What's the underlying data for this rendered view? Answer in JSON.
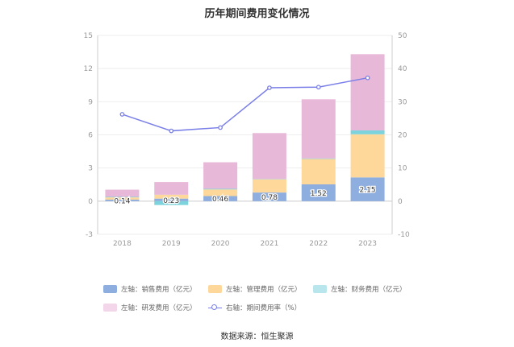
{
  "title": "历年期间费用变化情况",
  "source": "数据来源：恒生聚源",
  "chart_data": {
    "type": "bar",
    "stacked": true,
    "categories": [
      "2018",
      "2019",
      "2020",
      "2021",
      "2022",
      "2023"
    ],
    "left_axis": {
      "min": -3,
      "max": 15,
      "ticks": [
        "-3",
        "0",
        "3",
        "6",
        "9",
        "12",
        "15"
      ]
    },
    "right_axis": {
      "min": -10,
      "max": 50,
      "ticks": [
        "-10",
        "0",
        "10",
        "20",
        "30",
        "40",
        "50"
      ]
    },
    "series": [
      {
        "name": "左轴：销售费用（亿元）",
        "color": "#8eaee0",
        "axis": "left",
        "type": "bar",
        "values": [
          0.14,
          0.23,
          0.46,
          0.78,
          1.52,
          2.15
        ],
        "labels": [
          "0.14",
          "0.23",
          "0.46",
          "0.78",
          "1.52",
          "2.15"
        ]
      },
      {
        "name": "左轴：管理费用（亿元）",
        "color": "#fdd89a",
        "axis": "left",
        "type": "bar",
        "values": [
          0.2,
          0.35,
          0.6,
          1.2,
          2.3,
          3.9
        ]
      },
      {
        "name": "左轴：财务费用（亿元）",
        "color": "#7dd3dc",
        "axis": "left",
        "type": "bar",
        "values": [
          0.05,
          -0.35,
          0.06,
          0.03,
          0.05,
          0.35
        ]
      },
      {
        "name": "左轴：研发费用（亿元）",
        "color": "#e8b8d9",
        "axis": "left",
        "type": "bar",
        "values": [
          0.65,
          1.15,
          2.4,
          4.15,
          5.35,
          6.9
        ]
      },
      {
        "name": "右轴：期间费用率（%）",
        "color": "#7a7fe8",
        "axis": "right",
        "type": "line",
        "values": [
          26.2,
          21.2,
          22.2,
          34.2,
          34.4,
          37.2
        ]
      }
    ]
  },
  "legend": [
    [
      {
        "label": "左轴：销售费用（亿元）",
        "color": "#8eaee0",
        "kind": "box"
      },
      {
        "label": "左轴：管理费用（亿元）",
        "color": "#fdd89a",
        "kind": "box"
      },
      {
        "label": "左轴：财务费用（亿元）",
        "color": "#b9e6ec",
        "kind": "box"
      }
    ],
    [
      {
        "label": "左轴：研发费用（亿元）",
        "color": "#f4d6ea",
        "kind": "box"
      },
      {
        "label": "右轴：期间费用率（%）",
        "color": "#7a7fe8",
        "kind": "line"
      }
    ]
  ]
}
